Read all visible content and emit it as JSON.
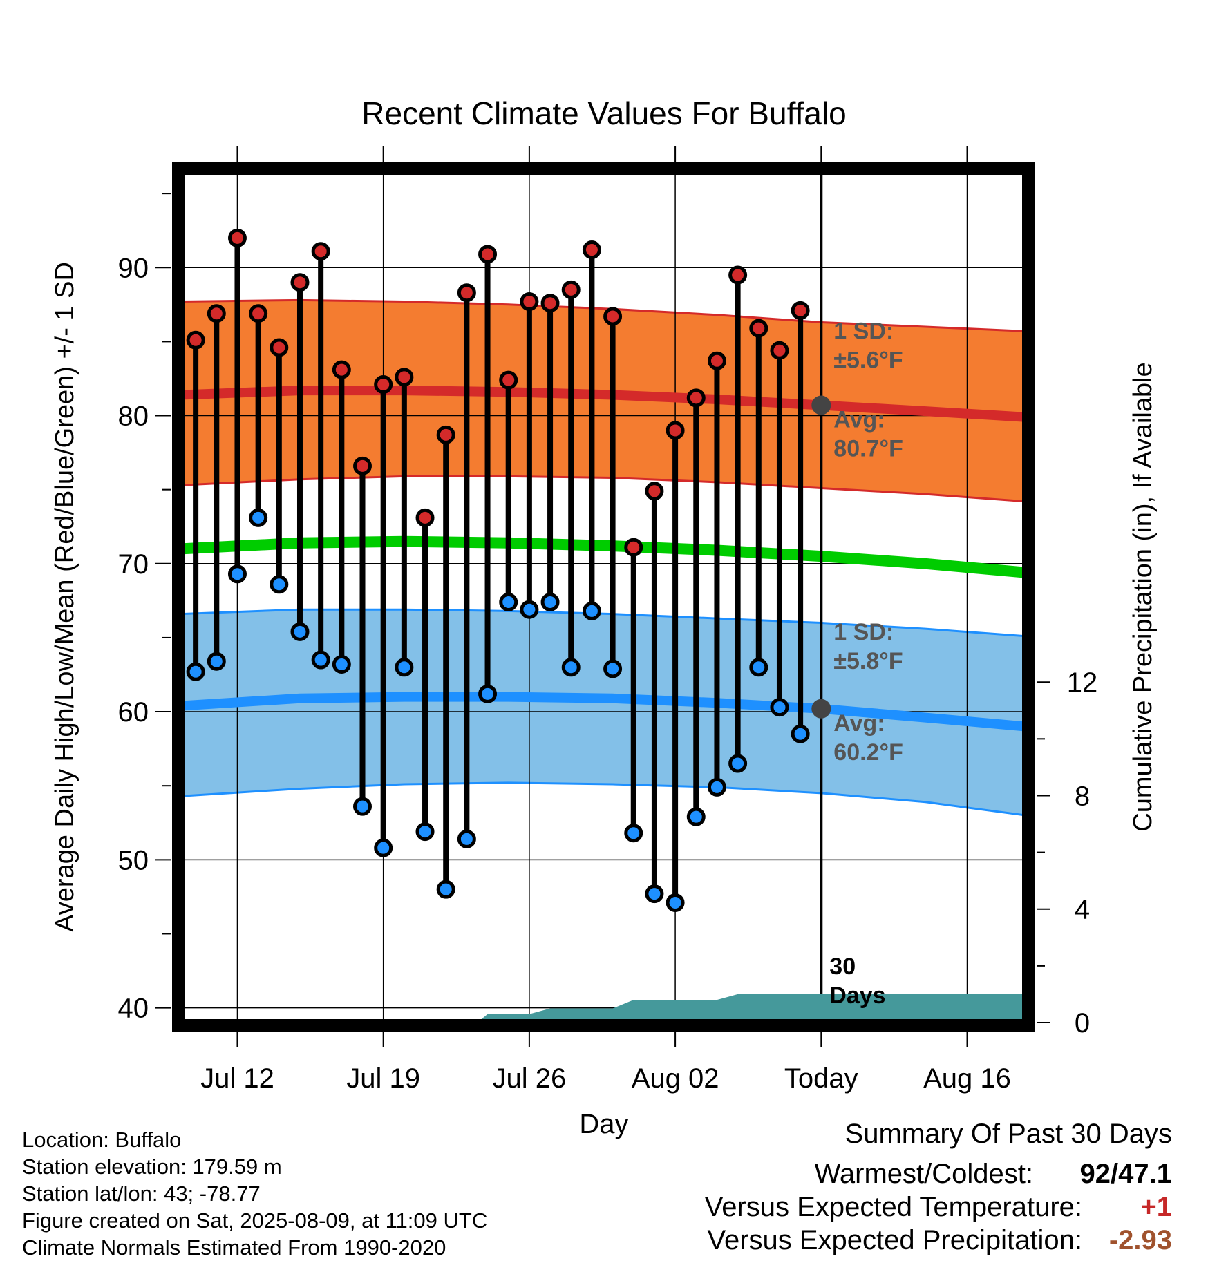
{
  "chart_data": {
    "type": "line",
    "title": "Recent Climate Values For Buffalo",
    "xlabel": "Day",
    "ylabel": "Average Daily High/Low/Mean (Red/Blue/Green) +/- 1 SD",
    "y2label": "Cumulative Precipitation (in), If Available",
    "ylim": [
      39,
      96.5
    ],
    "y2lim": [
      0,
      30
    ],
    "grid": true,
    "x_tick_labels": [
      "Jul 12",
      "Jul 19",
      "Jul 26",
      "Aug 02",
      "Today",
      "Aug 16"
    ],
    "x_ticks_day_offset": [
      2,
      9,
      16,
      23,
      30,
      37
    ],
    "xlim_day_offset": [
      -0.7,
      39.8
    ],
    "y_ticks": [
      40,
      50,
      60,
      70,
      80,
      90
    ],
    "y2_ticks": [
      0,
      4,
      8,
      12
    ],
    "days": [
      "Jul 10",
      "Jul 11",
      "Jul 12",
      "Jul 13",
      "Jul 14",
      "Jul 15",
      "Jul 16",
      "Jul 17",
      "Jul 18",
      "Jul 19",
      "Jul 20",
      "Jul 21",
      "Jul 22",
      "Jul 23",
      "Jul 24",
      "Jul 25",
      "Jul 26",
      "Jul 27",
      "Jul 28",
      "Jul 29",
      "Jul 30",
      "Jul 31",
      "Aug 01",
      "Aug 02",
      "Aug 03",
      "Aug 04",
      "Aug 05",
      "Aug 06",
      "Aug 07",
      "Aug 08"
    ],
    "highs": [
      85.1,
      86.9,
      92.0,
      86.9,
      84.6,
      89.0,
      91.1,
      83.1,
      76.6,
      82.1,
      82.6,
      73.1,
      78.7,
      88.3,
      90.9,
      82.4,
      87.7,
      87.6,
      88.5,
      91.2,
      86.7,
      71.1,
      74.9,
      79.0,
      81.2,
      83.7,
      89.5,
      85.9,
      84.4,
      87.1
    ],
    "lows": [
      62.7,
      63.4,
      69.3,
      73.1,
      68.6,
      65.4,
      63.5,
      63.2,
      53.6,
      50.8,
      63.0,
      51.9,
      48.0,
      51.4,
      61.2,
      67.4,
      66.9,
      67.4,
      63.0,
      66.8,
      62.9,
      51.8,
      47.7,
      47.1,
      52.9,
      54.9,
      56.5,
      63.0,
      60.3,
      58.5
    ],
    "normal_high": {
      "day_offset": [
        -0.7,
        5,
        10,
        15,
        20,
        25,
        30,
        35,
        39.8
      ],
      "mean": [
        81.4,
        81.7,
        81.7,
        81.6,
        81.4,
        81.1,
        80.7,
        80.3,
        79.9
      ],
      "upper": [
        87.7,
        87.8,
        87.7,
        87.5,
        87.2,
        86.8,
        86.3,
        86.0,
        85.7
      ],
      "lower": [
        75.3,
        75.7,
        75.9,
        75.9,
        75.8,
        75.5,
        75.1,
        74.7,
        74.2
      ]
    },
    "normal_low": {
      "day_offset": [
        -0.7,
        5,
        10,
        15,
        20,
        25,
        30,
        35,
        39.8
      ],
      "mean": [
        60.4,
        60.9,
        61.0,
        61.0,
        60.9,
        60.6,
        60.2,
        59.6,
        59.0
      ],
      "upper": [
        66.6,
        66.9,
        66.9,
        66.8,
        66.6,
        66.3,
        66.0,
        65.6,
        65.1
      ],
      "lower": [
        54.3,
        54.8,
        55.1,
        55.2,
        55.1,
        54.9,
        54.5,
        53.9,
        53.0
      ]
    },
    "normal_mean": {
      "day_offset": [
        -0.7,
        5,
        10,
        15,
        20,
        25,
        30,
        35,
        39.8
      ],
      "values": [
        71.0,
        71.4,
        71.5,
        71.4,
        71.2,
        70.9,
        70.5,
        70.0,
        69.4
      ]
    },
    "precip_cumulative": {
      "day_offset": [
        -0.7,
        13.5,
        14,
        16,
        17,
        20,
        21,
        25,
        26,
        30,
        39.8
      ],
      "values": [
        0,
        0,
        0.3,
        0.3,
        0.5,
        0.5,
        0.8,
        0.8,
        1.0,
        1.0,
        1.0
      ]
    },
    "annotations": {
      "high_sd_label": "1 SD:",
      "high_sd_value": "±5.6°F",
      "high_avg_label": "Avg:",
      "high_avg_value": "80.7°F",
      "low_sd_label": "1 SD:",
      "low_sd_value": "±5.8°F",
      "low_avg_label": "Avg:",
      "low_avg_value": "60.2°F",
      "today_high_avg": 80.7,
      "today_low_avg": 60.2,
      "days_count_line1": "30",
      "days_count_line2": "Days"
    },
    "colors": {
      "high_band": "#f47c30",
      "high_line": "#d42a2a",
      "low_band": "#83c0e8",
      "low_line": "#1e90ff",
      "mean_line": "#00cc00",
      "precip": "#45999b",
      "high_marker": "#d42a2a",
      "low_marker": "#1e90ff",
      "annotation_text": "#555555"
    }
  },
  "footer": {
    "location": "Location: Buffalo",
    "elevation": "Station elevation: 179.59 m",
    "latlon": "Station lat/lon: 43; -78.77",
    "created": "Figure created on Sat, 2025-08-09, at 11:09 UTC",
    "normals": "Climate Normals Estimated From 1990-2020"
  },
  "summary": {
    "title": "Summary Of Past 30 Days",
    "warmest_label": "Warmest/Coldest:",
    "warmest_value": "92/47.1",
    "temp_label": "Versus Expected Temperature:",
    "temp_value": "+1",
    "precip_label": "Versus Expected Precipitation:",
    "precip_value": "-2.93",
    "temp_color": "#c62828",
    "precip_color": "#a0522d"
  }
}
